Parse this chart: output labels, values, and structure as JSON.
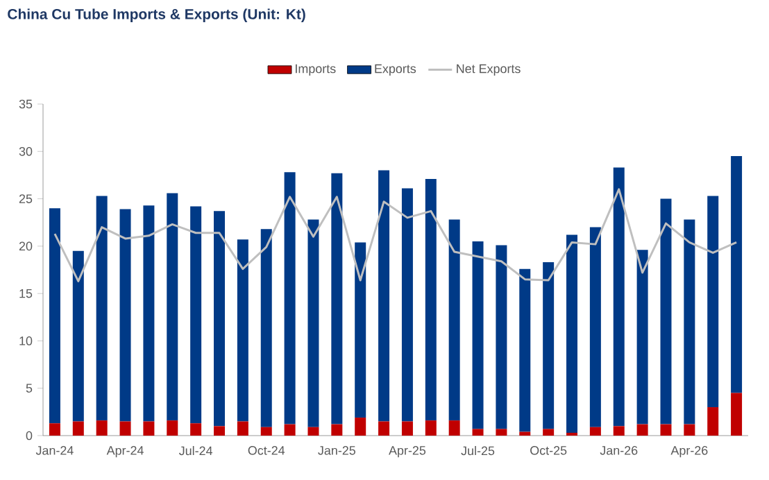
{
  "chart_data": {
    "type": "bar",
    "title": "China Cu Tube Imports & Exports (Unit: Kt)",
    "stacked": true,
    "legend": "top",
    "categories": [
      "Jan-24",
      null,
      null,
      "Apr-24",
      null,
      null,
      "Jul-24",
      null,
      null,
      "Oct-24",
      null,
      null,
      "Jan-25",
      null,
      null,
      "Apr-25",
      null,
      null,
      "Jul-25",
      null,
      null,
      "Oct-25",
      null,
      null,
      "Jan-26",
      null,
      null,
      "Apr-26",
      null,
      null
    ],
    "ylim": [
      0,
      35
    ],
    "yticks": [
      0,
      5,
      10,
      15,
      20,
      25,
      30,
      35
    ],
    "series": [
      {
        "name": "Imports",
        "color": "#c00000",
        "values": [
          1.3,
          1.5,
          1.6,
          1.5,
          1.5,
          1.6,
          1.3,
          1.0,
          1.5,
          0.9,
          1.2,
          0.9,
          1.2,
          1.9,
          1.5,
          1.5,
          1.6,
          1.6,
          0.7,
          0.7,
          0.4,
          0.7,
          0.3,
          0.9,
          1.0,
          1.2,
          1.2,
          1.2,
          3.0,
          4.5
        ]
      },
      {
        "name": "Exports",
        "color": "#003a87",
        "values": [
          22.7,
          18.0,
          23.7,
          22.4,
          22.8,
          24.0,
          22.9,
          22.7,
          19.2,
          20.9,
          26.6,
          21.9,
          26.5,
          18.5,
          26.5,
          24.6,
          25.5,
          21.2,
          19.8,
          19.4,
          17.2,
          17.6,
          20.9,
          21.1,
          27.3,
          18.4,
          23.8,
          21.6,
          22.3,
          25.0
        ]
      },
      {
        "name": "Net Exports",
        "type": "line",
        "color": "#bfbfbf",
        "values": [
          21.3,
          16.3,
          22.0,
          20.8,
          21.1,
          22.3,
          21.4,
          21.4,
          17.6,
          19.9,
          25.2,
          21.0,
          25.2,
          16.4,
          24.7,
          23.0,
          23.7,
          19.4,
          18.9,
          18.4,
          16.5,
          16.4,
          20.4,
          20.2,
          26.0,
          17.2,
          22.4,
          20.4,
          19.3,
          20.4
        ]
      }
    ]
  }
}
